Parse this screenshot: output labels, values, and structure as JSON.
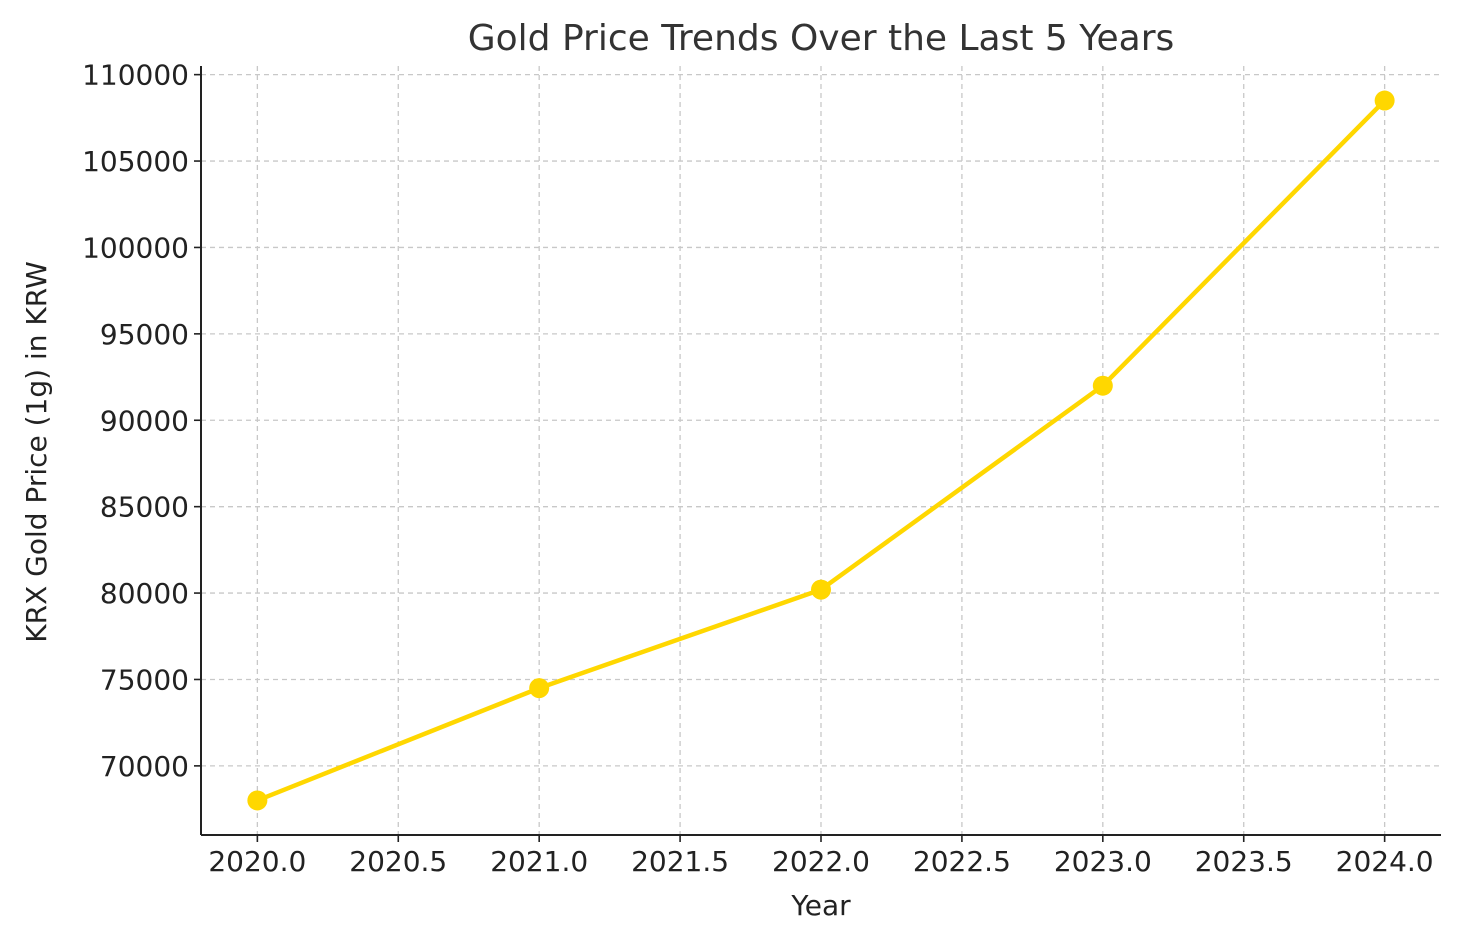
{
  "chart_data": {
    "type": "line",
    "title": "Gold Price Trends Over the Last 5 Years",
    "xlabel": "Year",
    "ylabel": "KRX Gold Price (1g) in KRW",
    "x": [
      2020,
      2021,
      2022,
      2023,
      2024
    ],
    "series": [
      {
        "values": [
          68000,
          74500,
          80200,
          92000,
          108500
        ],
        "color": "#FFD700"
      }
    ],
    "xlim": [
      2019.8,
      2024.2
    ],
    "ylim": [
      66000,
      110500
    ],
    "xticks": [
      2020.0,
      2020.5,
      2021.0,
      2021.5,
      2022.0,
      2022.5,
      2023.0,
      2023.5,
      2024.0
    ],
    "xtick_labels": [
      "2020.0",
      "2020.5",
      "2021.0",
      "2021.5",
      "2022.0",
      "2022.5",
      "2023.0",
      "2023.5",
      "2024.0"
    ],
    "yticks": [
      70000,
      75000,
      80000,
      85000,
      90000,
      95000,
      100000,
      105000,
      110000
    ],
    "ytick_labels": [
      "70000",
      "75000",
      "80000",
      "85000",
      "90000",
      "95000",
      "100000",
      "105000",
      "110000"
    ],
    "grid": true,
    "grid_style": "dashed",
    "markers": "circle"
  }
}
